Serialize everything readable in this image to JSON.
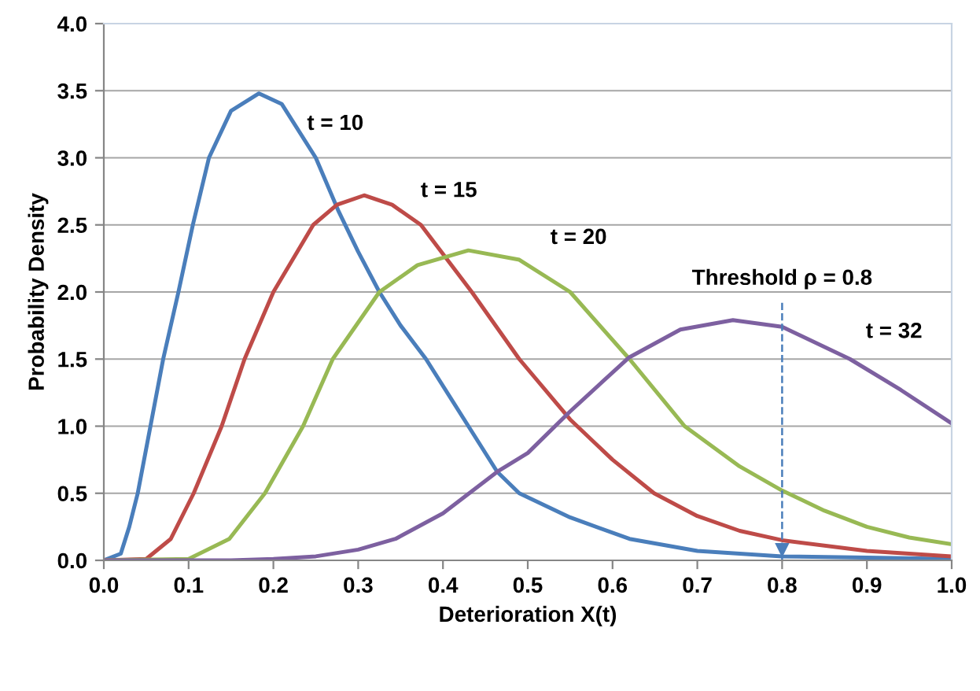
{
  "chart_data": {
    "type": "line",
    "xlabel": "Deterioration X(t)",
    "ylabel": "Probability Density",
    "xlim": [
      0,
      1.0
    ],
    "xticks": [
      {
        "value": 0,
        "label": "0.0"
      },
      0.1,
      0.2,
      0.3,
      0.4,
      0.5,
      0.6,
      0.7,
      0.8,
      0.9,
      {
        "value": 1,
        "label": "1.0"
      }
    ],
    "ylim": [
      0,
      4.0
    ],
    "yticks": [
      {
        "value": 0,
        "label": "0.0"
      },
      0.5,
      {
        "value": 1,
        "label": "1.0"
      },
      1.5,
      {
        "value": 2,
        "label": "2.0"
      },
      2.5,
      {
        "value": 3,
        "label": "3.0"
      },
      3.5,
      {
        "value": 4,
        "label": "4.0"
      }
    ],
    "grid": "y",
    "legend": false,
    "marker": "none",
    "line_style": "solid",
    "series": [
      {
        "name": "t = 10",
        "color": "#4a7ebb",
        "x": [
          0,
          0.02,
          0.03,
          0.04,
          0.055,
          0.07,
          0.088,
          0.105,
          0.124,
          0.15,
          0.183,
          0.21,
          0.25,
          0.277,
          0.3,
          0.325,
          0.35,
          0.38,
          0.43,
          0.464,
          0.49,
          0.55,
          0.62,
          0.7,
          0.8,
          0.9,
          1.0
        ],
        "values": [
          0,
          0.05,
          0.25,
          0.5,
          1.0,
          1.5,
          2.0,
          2.5,
          3.0,
          3.35,
          3.48,
          3.4,
          3.0,
          2.6,
          2.3,
          2.0,
          1.75,
          1.5,
          1.0,
          0.66,
          0.5,
          0.32,
          0.16,
          0.07,
          0.03,
          0.02,
          0.01
        ]
      },
      {
        "name": "t = 15",
        "color": "#be4b48",
        "x": [
          0,
          0.05,
          0.079,
          0.106,
          0.139,
          0.166,
          0.2,
          0.247,
          0.275,
          0.307,
          0.34,
          0.374,
          0.434,
          0.49,
          0.55,
          0.6,
          0.649,
          0.7,
          0.75,
          0.8,
          0.9,
          1.0
        ],
        "values": [
          0,
          0.01,
          0.16,
          0.5,
          1.0,
          1.5,
          2.0,
          2.5,
          2.65,
          2.72,
          2.65,
          2.5,
          2.0,
          1.5,
          1.05,
          0.75,
          0.5,
          0.33,
          0.22,
          0.15,
          0.07,
          0.03
        ]
      },
      {
        "name": "t = 20",
        "color": "#98b954",
        "x": [
          0,
          0.1,
          0.148,
          0.19,
          0.235,
          0.27,
          0.325,
          0.37,
          0.43,
          0.49,
          0.55,
          0.62,
          0.685,
          0.75,
          0.8,
          0.85,
          0.9,
          0.95,
          1.0
        ],
        "values": [
          0,
          0.01,
          0.16,
          0.5,
          1.0,
          1.5,
          2.0,
          2.2,
          2.31,
          2.24,
          2.0,
          1.5,
          1.0,
          0.7,
          0.52,
          0.37,
          0.25,
          0.17,
          0.12
        ]
      },
      {
        "name": "t = 32",
        "color": "#7d60a0",
        "x": [
          0,
          0.15,
          0.2,
          0.25,
          0.3,
          0.344,
          0.4,
          0.464,
          0.5,
          0.55,
          0.619,
          0.68,
          0.742,
          0.8,
          0.88,
          0.94,
          1.0
        ],
        "values": [
          0,
          0,
          0.01,
          0.03,
          0.08,
          0.16,
          0.35,
          0.66,
          0.8,
          1.11,
          1.51,
          1.72,
          1.79,
          1.74,
          1.5,
          1.27,
          1.02
        ]
      }
    ],
    "ref_lines": [
      {
        "axis": "x",
        "value": 0.8,
        "label": "Threshold ρ = 0.8",
        "color": "#4a7ebb",
        "line_style": "dashed"
      }
    ]
  }
}
